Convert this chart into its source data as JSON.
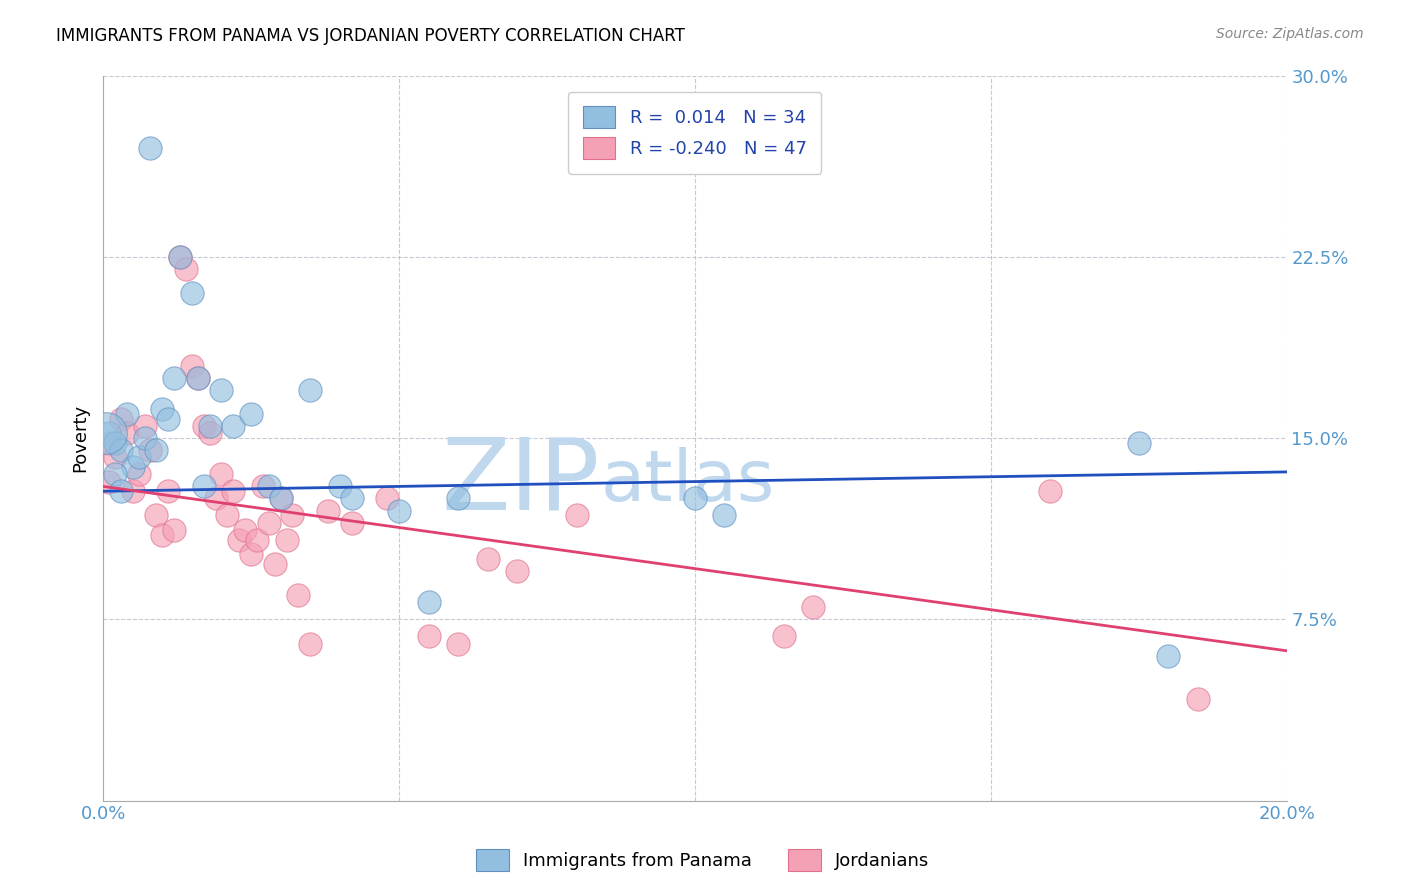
{
  "title": "IMMIGRANTS FROM PANAMA VS JORDANIAN POVERTY CORRELATION CHART",
  "source_text": "Source: ZipAtlas.com",
  "ylabel": "Poverty",
  "xlim": [
    0.0,
    0.2
  ],
  "ylim": [
    0.0,
    0.3
  ],
  "yticks": [
    0.0,
    0.075,
    0.15,
    0.225,
    0.3
  ],
  "ytick_labels": [
    "",
    "7.5%",
    "15.0%",
    "22.5%",
    "30.0%"
  ],
  "xticks": [
    0.0,
    0.05,
    0.1,
    0.15,
    0.2
  ],
  "xtick_labels": [
    "0.0%",
    "",
    "",
    "",
    "20.0%"
  ],
  "legend_r_entries": [
    "R =  0.014   N = 34",
    "R = -0.240   N = 47"
  ],
  "legend_bottom": [
    "Immigrants from Panama",
    "Jordanians"
  ],
  "blue_color": "#92bfe0",
  "pink_color": "#f4a0b5",
  "blue_edge_color": "#6090c0",
  "pink_edge_color": "#e07090",
  "line_blue": "#2050c0",
  "line_pink": "#e04070",
  "watermark_zip": "ZIP",
  "watermark_atlas": "atlas",
  "watermark_color": "#c0d8ee",
  "blue_scatter_x": [
    0.001,
    0.002,
    0.003,
    0.004,
    0.005,
    0.006,
    0.007,
    0.008,
    0.009,
    0.01,
    0.011,
    0.012,
    0.013,
    0.015,
    0.016,
    0.017,
    0.018,
    0.02,
    0.022,
    0.025,
    0.028,
    0.03,
    0.035,
    0.04,
    0.042,
    0.05,
    0.055,
    0.06,
    0.1,
    0.105,
    0.175,
    0.18,
    0.002,
    0.003
  ],
  "blue_scatter_y": [
    0.152,
    0.148,
    0.145,
    0.16,
    0.138,
    0.142,
    0.15,
    0.27,
    0.145,
    0.162,
    0.158,
    0.175,
    0.225,
    0.21,
    0.175,
    0.13,
    0.155,
    0.17,
    0.155,
    0.16,
    0.13,
    0.125,
    0.17,
    0.13,
    0.125,
    0.12,
    0.082,
    0.125,
    0.125,
    0.118,
    0.148,
    0.06,
    0.135,
    0.128
  ],
  "pink_scatter_x": [
    0.001,
    0.002,
    0.003,
    0.004,
    0.005,
    0.006,
    0.007,
    0.008,
    0.009,
    0.01,
    0.011,
    0.012,
    0.013,
    0.014,
    0.015,
    0.016,
    0.017,
    0.018,
    0.019,
    0.02,
    0.021,
    0.022,
    0.023,
    0.024,
    0.025,
    0.026,
    0.027,
    0.028,
    0.029,
    0.03,
    0.031,
    0.032,
    0.033,
    0.035,
    0.038,
    0.042,
    0.048,
    0.055,
    0.06,
    0.065,
    0.07,
    0.08,
    0.115,
    0.12,
    0.16,
    0.185,
    0.001
  ],
  "pink_scatter_y": [
    0.148,
    0.142,
    0.158,
    0.152,
    0.128,
    0.135,
    0.155,
    0.145,
    0.118,
    0.11,
    0.128,
    0.112,
    0.225,
    0.22,
    0.18,
    0.175,
    0.155,
    0.152,
    0.125,
    0.135,
    0.118,
    0.128,
    0.108,
    0.112,
    0.102,
    0.108,
    0.13,
    0.115,
    0.098,
    0.125,
    0.108,
    0.118,
    0.085,
    0.065,
    0.12,
    0.115,
    0.125,
    0.068,
    0.065,
    0.1,
    0.095,
    0.118,
    0.068,
    0.08,
    0.128,
    0.042,
    0.132
  ],
  "blue_trend_x": [
    0.0,
    0.2
  ],
  "blue_trend_y": [
    0.128,
    0.136
  ],
  "pink_trend_x": [
    0.0,
    0.2
  ],
  "pink_trend_y": [
    0.13,
    0.062
  ]
}
